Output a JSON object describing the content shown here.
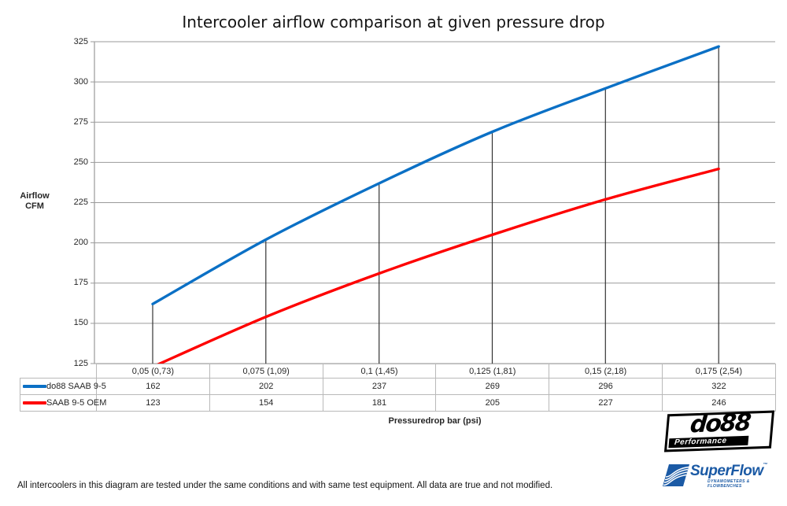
{
  "title": "Intercooler airflow comparison at given pressure drop",
  "y_axis": {
    "label_line1": "Airflow",
    "label_line2": "CFM",
    "ticks": [
      325,
      300,
      275,
      250,
      225,
      200,
      175,
      150,
      125
    ]
  },
  "x_axis": {
    "label": "Pressuredrop bar (psi)"
  },
  "chart_data": {
    "type": "line",
    "title": "Intercooler airflow comparison at given pressure drop",
    "categories": [
      "0,05 (0,73)",
      "0,075 (1,09)",
      "0,1 (1,45)",
      "0,125 (1,81)",
      "0,15 (2,18)",
      "0,175 (2,54)"
    ],
    "series": [
      {
        "name": "do88 SAAB 9-5",
        "color": "#0b70c5",
        "values": [
          162,
          202,
          237,
          269,
          296,
          322
        ]
      },
      {
        "name": "SAAB 9-5 OEM",
        "color": "#fe0000",
        "values": [
          123,
          154,
          181,
          205,
          227,
          246
        ]
      }
    ],
    "xlabel": "Pressuredrop bar (psi)",
    "ylabel": "Airflow CFM",
    "ylim": [
      125,
      325
    ],
    "grid": true,
    "gridline_color": "#9a9a9a",
    "dropline_color": "#333333",
    "legend_position": "table-left",
    "data_table": true
  },
  "footer": "All intercoolers in this diagram are tested under the same conditions and with same test equipment. All data are true and not modified.",
  "logos": {
    "do88": {
      "text": "do88",
      "sub": "Performance"
    },
    "superflow": {
      "text": "SuperFlow",
      "tm": "™",
      "sub": "DYNAMOMETERS & FLOWBENCHES"
    }
  }
}
